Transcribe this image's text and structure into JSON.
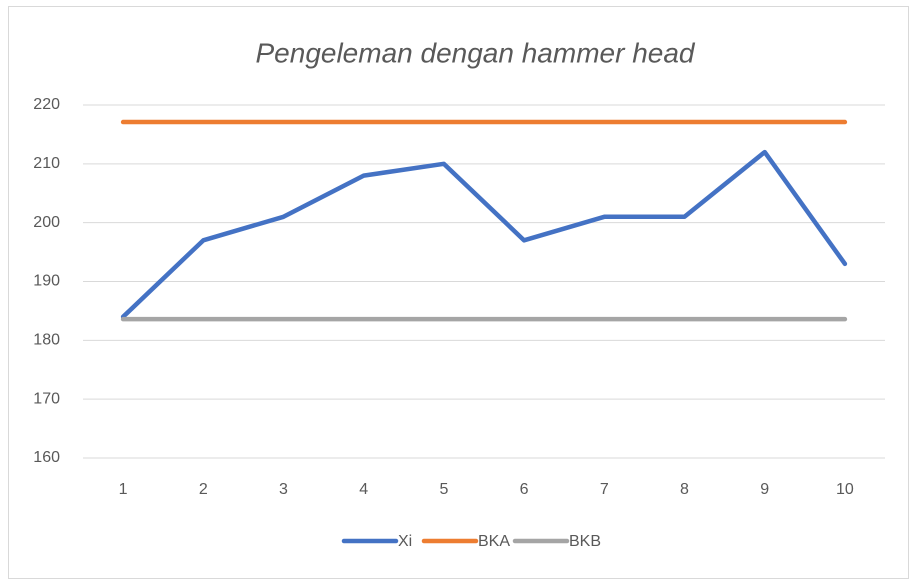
{
  "chart_data": {
    "type": "line",
    "title": "Pengeleman dengan hammer head",
    "categories": [
      "1",
      "2",
      "3",
      "4",
      "5",
      "6",
      "7",
      "8",
      "9",
      "10"
    ],
    "series": [
      {
        "name": "Xi",
        "color": "#4472c4",
        "values": [
          184,
          197,
          201,
          208,
          210,
          197,
          201,
          201,
          212,
          193
        ]
      },
      {
        "name": "BKA",
        "color": "#ed7d31",
        "values": [
          217.1,
          217.1,
          217.1,
          217.1,
          217.1,
          217.1,
          217.1,
          217.1,
          217.1,
          217.1
        ]
      },
      {
        "name": "BKB",
        "color": "#a5a5a5",
        "values": [
          183.6,
          183.6,
          183.6,
          183.6,
          183.6,
          183.6,
          183.6,
          183.6,
          183.6,
          183.6
        ]
      }
    ],
    "ylim": [
      160,
      220
    ],
    "yticks": [
      160,
      170,
      180,
      190,
      200,
      210,
      220
    ],
    "grid": true,
    "legend": "bottom"
  }
}
